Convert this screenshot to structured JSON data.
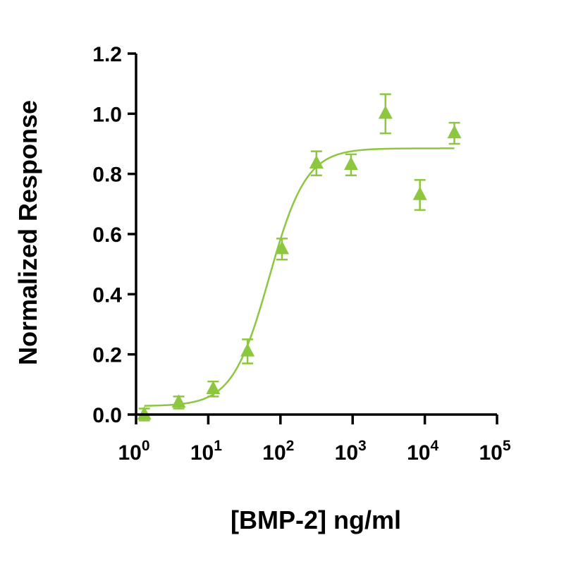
{
  "chart_data": {
    "type": "scatter",
    "title": "",
    "xlabel": "[BMP-2] ng/ml",
    "ylabel": "Normalized Response",
    "x_scale": "log",
    "xlim": [
      1,
      100000
    ],
    "ylim": [
      0,
      1.2
    ],
    "y_ticks": [
      "0.0",
      "0.2",
      "0.4",
      "0.6",
      "0.8",
      "1.0",
      "1.2"
    ],
    "x_ticks": [
      {
        "base": "10",
        "exp": "0"
      },
      {
        "base": "10",
        "exp": "1"
      },
      {
        "base": "10",
        "exp": "2"
      },
      {
        "base": "10",
        "exp": "3"
      },
      {
        "base": "10",
        "exp": "4"
      },
      {
        "base": "10",
        "exp": "5"
      }
    ],
    "grid": false,
    "legend": "none",
    "series": [
      {
        "color": "#8dc63f",
        "marker": "triangle",
        "x": [
          1.3,
          3.9,
          11.7,
          35,
          105,
          315,
          950,
          2850,
          8550,
          25650
        ],
        "y": [
          0.0,
          0.04,
          0.085,
          0.21,
          0.55,
          0.835,
          0.83,
          1.0,
          0.73,
          0.935
        ],
        "error": [
          0.02,
          0.02,
          0.025,
          0.04,
          0.035,
          0.04,
          0.035,
          0.065,
          0.05,
          0.035
        ]
      }
    ],
    "fit_curve": {
      "type": "4PL",
      "bottom": 0.028,
      "top": 0.885,
      "ec50": 70,
      "hill": 1.7,
      "x_range": [
        1.3,
        25650
      ]
    }
  }
}
